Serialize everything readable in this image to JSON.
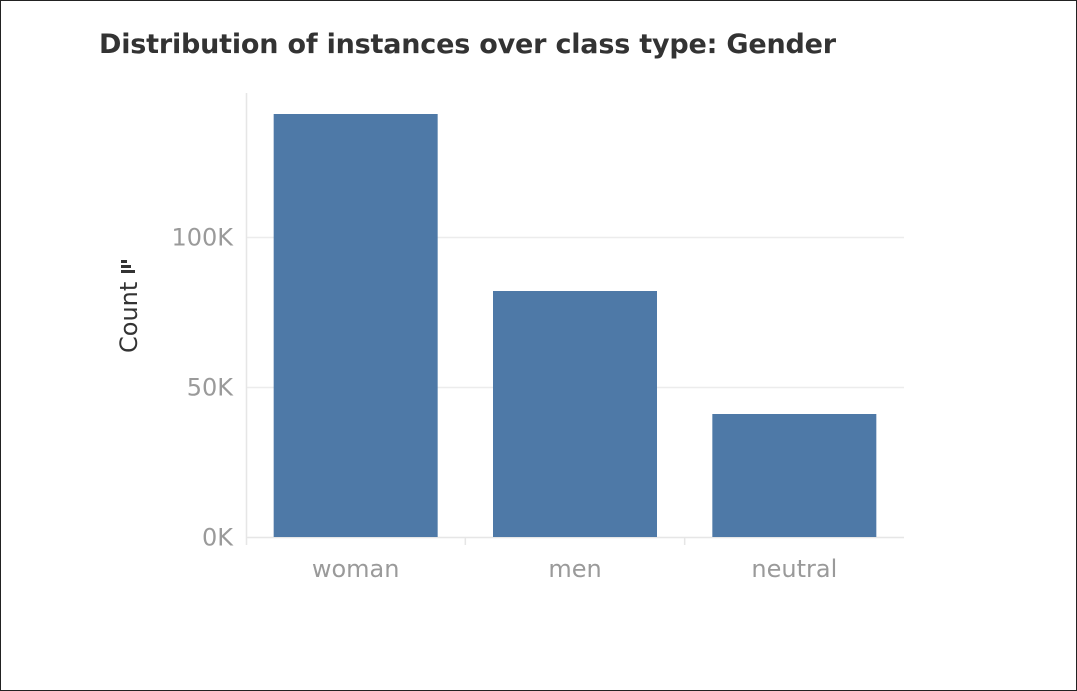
{
  "chart_data": {
    "type": "bar",
    "title": "Distribution of instances over class type: Gender",
    "xlabel": "",
    "ylabel": "Count",
    "categories": [
      "woman",
      "men",
      "neutral"
    ],
    "values": [
      141000,
      82000,
      41000
    ],
    "ylim": [
      0,
      148000
    ],
    "yticks": [
      0,
      50000,
      100000
    ],
    "ytick_labels": [
      "0K",
      "50K",
      "100K"
    ],
    "grid": true,
    "bar_color": "#4e79a7",
    "ylabel_icon": "sort-icon"
  }
}
